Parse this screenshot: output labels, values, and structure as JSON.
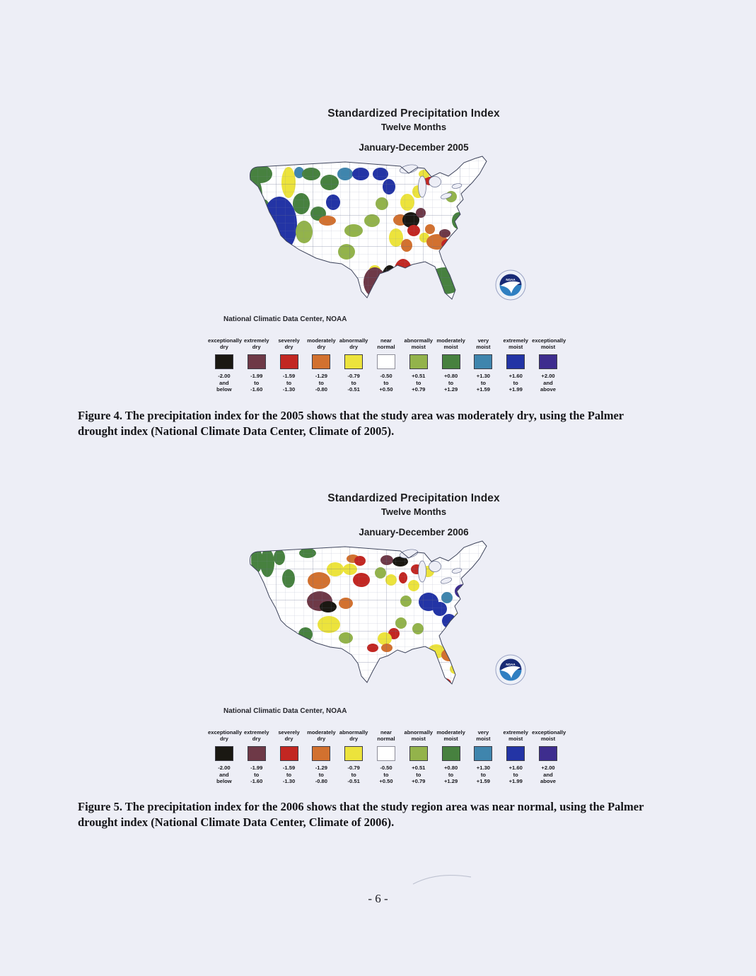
{
  "page": {
    "background": "#edeef6",
    "number_label": "- 6 -"
  },
  "noaa_logo_text": "NOAA",
  "map_palette": {
    "K": "#1a1812",
    "M": "#6e3947",
    "R": "#c22722",
    "O": "#d2712f",
    "Y": "#ece33c",
    "W": "#ffffff",
    "LG": "#93b34b",
    "G": "#47813f",
    "T": "#3f85ad",
    "B": "#2334a5",
    "P": "#3e2d8e"
  },
  "legend": {
    "items": [
      {
        "key": "exceptionally-dry",
        "label": [
          "exceptionally",
          "dry"
        ],
        "color": "#1a1812",
        "range": [
          "-2.00",
          "and",
          "below"
        ]
      },
      {
        "key": "extremely-dry",
        "label": [
          "extremely",
          "dry"
        ],
        "color": "#6e3947",
        "range": [
          "-1.99",
          "to",
          "-1.60"
        ]
      },
      {
        "key": "severely-dry",
        "label": [
          "severely",
          "dry"
        ],
        "color": "#c22722",
        "range": [
          "-1.59",
          "to",
          "-1.30"
        ]
      },
      {
        "key": "moderately-dry",
        "label": [
          "moderately",
          "dry"
        ],
        "color": "#d2712f",
        "range": [
          "-1.29",
          "to",
          "-0.80"
        ]
      },
      {
        "key": "abnormally-dry",
        "label": [
          "abnormally",
          "dry"
        ],
        "color": "#ece33c",
        "range": [
          "-0.79",
          "to",
          "-0.51"
        ]
      },
      {
        "key": "near-normal",
        "label": [
          "near",
          "normal"
        ],
        "color": "#ffffff",
        "range": [
          "-0.50",
          "to",
          "+0.50"
        ]
      },
      {
        "key": "abnormally-moist",
        "label": [
          "abnormally",
          "moist"
        ],
        "color": "#93b34b",
        "range": [
          "+0.51",
          "to",
          "+0.79"
        ]
      },
      {
        "key": "moderately-moist",
        "label": [
          "moderately",
          "moist"
        ],
        "color": "#47813f",
        "range": [
          "+0.80",
          "to",
          "+1.29"
        ]
      },
      {
        "key": "very-moist",
        "label": [
          "very",
          "moist"
        ],
        "color": "#3f85ad",
        "range": [
          "+1.30",
          "to",
          "+1.59"
        ]
      },
      {
        "key": "extremely-moist",
        "label": [
          "extremely",
          "moist"
        ],
        "color": "#2334a5",
        "range": [
          "+1.60",
          "to",
          "+1.99"
        ]
      },
      {
        "key": "exceptionally-moist",
        "label": [
          "exceptionally",
          "moist"
        ],
        "color": "#3e2d8e",
        "range": [
          "+2.00",
          "and",
          "above"
        ]
      }
    ]
  },
  "figures": [
    {
      "figure_id": "Figure 4",
      "title_line1": "Standardized Precipitation Index",
      "title_line2": "Twelve Months",
      "subtitle": "January-December 2005",
      "source_label": "National Climatic Data Center, NOAA",
      "caption_lines": [
        "Figure 4. The precipitation index for the 2005 shows that the study area was moderately dry, using the Palmer",
        "drought index (National Climate Data Center, Climate of 2005)."
      ],
      "map_blobs": [
        [
          30,
          30,
          17,
          13,
          "G"
        ],
        [
          24,
          62,
          9,
          26,
          "G"
        ],
        [
          70,
          42,
          10,
          22,
          "Y"
        ],
        [
          85,
          28,
          7,
          8,
          "T"
        ],
        [
          102,
          30,
          13,
          9,
          "G"
        ],
        [
          128,
          42,
          13,
          11,
          "G"
        ],
        [
          150,
          30,
          11,
          9,
          "T"
        ],
        [
          172,
          30,
          12,
          9,
          "B"
        ],
        [
          200,
          30,
          11,
          9,
          "B"
        ],
        [
          212,
          48,
          9,
          11,
          "B"
        ],
        [
          36,
          92,
          10,
          26,
          "G"
        ],
        [
          30,
          132,
          8,
          24,
          "G"
        ],
        [
          48,
          132,
          10,
          16,
          "LG"
        ],
        [
          57,
          102,
          25,
          40,
          "B"
        ],
        [
          88,
          72,
          12,
          15,
          "G"
        ],
        [
          92,
          112,
          12,
          16,
          "LG"
        ],
        [
          78,
          150,
          12,
          13,
          "LG"
        ],
        [
          112,
          86,
          11,
          10,
          "G"
        ],
        [
          133,
          70,
          10,
          11,
          "B"
        ],
        [
          125,
          96,
          12,
          7,
          "O"
        ],
        [
          162,
          110,
          13,
          9,
          "LG"
        ],
        [
          188,
          96,
          11,
          9,
          "LG"
        ],
        [
          202,
          72,
          9,
          9,
          "LG"
        ],
        [
          152,
          140,
          12,
          11,
          "LG"
        ],
        [
          142,
          172,
          15,
          13,
          "LG"
        ],
        [
          152,
          202,
          17,
          14,
          "LG"
        ],
        [
          192,
          166,
          8,
          7,
          "Y"
        ],
        [
          196,
          227,
          21,
          13,
          "O"
        ],
        [
          176,
          237,
          9,
          9,
          "O"
        ],
        [
          238,
          70,
          10,
          12,
          "Y"
        ],
        [
          253,
          55,
          8,
          9,
          "Y"
        ],
        [
          270,
          40,
          9,
          6,
          "R"
        ],
        [
          262,
          30,
          8,
          6,
          "Y"
        ],
        [
          228,
          95,
          10,
          8,
          "O"
        ],
        [
          243,
          95,
          12,
          11,
          "K"
        ],
        [
          247,
          110,
          9,
          8,
          "R"
        ],
        [
          257,
          85,
          7,
          7,
          "M"
        ],
        [
          222,
          120,
          10,
          13,
          "Y"
        ],
        [
          237,
          131,
          8,
          9,
          "O"
        ],
        [
          262,
          120,
          7,
          7,
          "Y"
        ],
        [
          270,
          108,
          7,
          7,
          "O"
        ],
        [
          300,
          62,
          8,
          8,
          "LG"
        ],
        [
          280,
          126,
          15,
          11,
          "O"
        ],
        [
          291,
          114,
          8,
          6,
          "M"
        ],
        [
          296,
          129,
          10,
          7,
          "R"
        ],
        [
          310,
          120,
          10,
          9,
          "O"
        ],
        [
          319,
          135,
          8,
          6,
          "R"
        ],
        [
          192,
          183,
          16,
          21,
          "M"
        ],
        [
          213,
          186,
          13,
          27,
          "K"
        ],
        [
          232,
          169,
          13,
          19,
          "R"
        ],
        [
          212,
          222,
          19,
          13,
          "O"
        ],
        [
          241,
          201,
          10,
          12,
          "O"
        ],
        [
          291,
          181,
          26,
          19,
          "G"
        ],
        [
          322,
          181,
          9,
          12,
          "T"
        ],
        [
          331,
          161,
          8,
          10,
          "G"
        ],
        [
          322,
          146,
          9,
          9,
          "LG"
        ],
        [
          311,
          96,
          10,
          12,
          "G"
        ],
        [
          321,
          81,
          9,
          9,
          "LG"
        ],
        [
          336,
          70,
          8,
          8,
          "G"
        ],
        [
          349,
          52,
          8,
          8,
          "G"
        ],
        [
          366,
          40,
          8,
          10,
          "B"
        ],
        [
          356,
          31,
          7,
          7,
          "T"
        ],
        [
          381,
          23,
          9,
          14,
          "P"
        ]
      ]
    },
    {
      "figure_id": "Figure 5",
      "title_line1": "Standardized Precipitation Index",
      "title_line2": "Twelve Months",
      "subtitle": "January-December 2006",
      "source_label": "National Climatic Data Center, NOAA",
      "caption_lines": [
        "Figure 5. The precipitation index for the 2006 shows that the study region area was near normal, using the Palmer",
        "drought index (National Climate Data Center, Climate of 2006)."
      ],
      "map_blobs": [
        [
          25,
          32,
          8,
          18,
          "G"
        ],
        [
          16,
          62,
          6,
          16,
          "T"
        ],
        [
          40,
          36,
          10,
          20,
          "G"
        ],
        [
          57,
          28,
          8,
          11,
          "G"
        ],
        [
          97,
          22,
          12,
          7,
          "G"
        ],
        [
          70,
          58,
          9,
          13,
          "G"
        ],
        [
          136,
          45,
          12,
          10,
          "Y"
        ],
        [
          113,
          61,
          16,
          12,
          "O"
        ],
        [
          114,
          90,
          18,
          14,
          "M"
        ],
        [
          126,
          98,
          12,
          8,
          "K"
        ],
        [
          151,
          93,
          10,
          8,
          "O"
        ],
        [
          157,
          45,
          10,
          8,
          "Y"
        ],
        [
          161,
          30,
          9,
          6,
          "O"
        ],
        [
          171,
          33,
          8,
          7,
          "R"
        ],
        [
          173,
          60,
          12,
          10,
          "R"
        ],
        [
          209,
          32,
          9,
          7,
          "M"
        ],
        [
          228,
          34,
          11,
          7,
          "K"
        ],
        [
          200,
          50,
          8,
          8,
          "LG"
        ],
        [
          215,
          60,
          8,
          8,
          "Y"
        ],
        [
          232,
          57,
          6,
          8,
          "R"
        ],
        [
          251,
          45,
          8,
          7,
          "R"
        ],
        [
          267,
          48,
          9,
          8,
          "Y"
        ],
        [
          247,
          68,
          8,
          8,
          "Y"
        ],
        [
          236,
          90,
          8,
          8,
          "LG"
        ],
        [
          268,
          91,
          14,
          13,
          "B"
        ],
        [
          284,
          101,
          10,
          10,
          "B"
        ],
        [
          294,
          85,
          8,
          8,
          "T"
        ],
        [
          297,
          118,
          10,
          10,
          "B"
        ],
        [
          317,
          76,
          12,
          10,
          "P"
        ],
        [
          334,
          66,
          8,
          8,
          "B"
        ],
        [
          351,
          51,
          10,
          10,
          "T"
        ],
        [
          361,
          43,
          7,
          7,
          "B"
        ],
        [
          373,
          28,
          10,
          14,
          "P"
        ],
        [
          311,
          112,
          6,
          6,
          "Y"
        ],
        [
          323,
          121,
          8,
          8,
          "G"
        ],
        [
          332,
          136,
          8,
          10,
          "T"
        ],
        [
          319,
          151,
          8,
          8,
          "G"
        ],
        [
          341,
          151,
          6,
          8,
          "T"
        ],
        [
          94,
          137,
          10,
          10,
          "G"
        ],
        [
          127,
          123,
          16,
          12,
          "Y"
        ],
        [
          151,
          142,
          10,
          8,
          "LG"
        ],
        [
          109,
          161,
          8,
          8,
          "T"
        ],
        [
          114,
          176,
          7,
          9,
          "B"
        ],
        [
          115,
          190,
          6,
          5,
          "M"
        ],
        [
          123,
          203,
          16,
          10,
          "Y"
        ],
        [
          74,
          161,
          12,
          12,
          "O"
        ],
        [
          79,
          178,
          9,
          9,
          "R"
        ],
        [
          67,
          196,
          14,
          9,
          "Y"
        ],
        [
          23,
          146,
          9,
          14,
          "LG"
        ],
        [
          39,
          166,
          10,
          18,
          "O"
        ],
        [
          29,
          173,
          8,
          9,
          "Y"
        ],
        [
          219,
          136,
          8,
          8,
          "R"
        ],
        [
          206,
          143,
          10,
          9,
          "Y"
        ],
        [
          189,
          156,
          8,
          6,
          "R"
        ],
        [
          209,
          156,
          8,
          6,
          "O"
        ],
        [
          229,
          121,
          8,
          8,
          "LG"
        ],
        [
          253,
          129,
          8,
          8,
          "LG"
        ],
        [
          171,
          216,
          17,
          15,
          "R"
        ],
        [
          197,
          219,
          9,
          9,
          "Y"
        ],
        [
          187,
          243,
          8,
          8,
          "Y"
        ],
        [
          205,
          191,
          8,
          8,
          "LG"
        ],
        [
          244,
          223,
          7,
          7,
          "O"
        ],
        [
          247,
          211,
          6,
          6,
          "M"
        ],
        [
          263,
          201,
          8,
          10,
          "Y"
        ],
        [
          279,
          161,
          12,
          10,
          "Y"
        ],
        [
          297,
          166,
          11,
          9,
          "O"
        ],
        [
          291,
          206,
          9,
          7,
          "R"
        ],
        [
          306,
          186,
          8,
          7,
          "Y"
        ],
        [
          321,
          216,
          13,
          25,
          "O"
        ],
        [
          321,
          213,
          7,
          9,
          "K"
        ],
        [
          311,
          223,
          7,
          8,
          "R"
        ],
        [
          327,
          241,
          7,
          8,
          "M"
        ]
      ]
    }
  ]
}
